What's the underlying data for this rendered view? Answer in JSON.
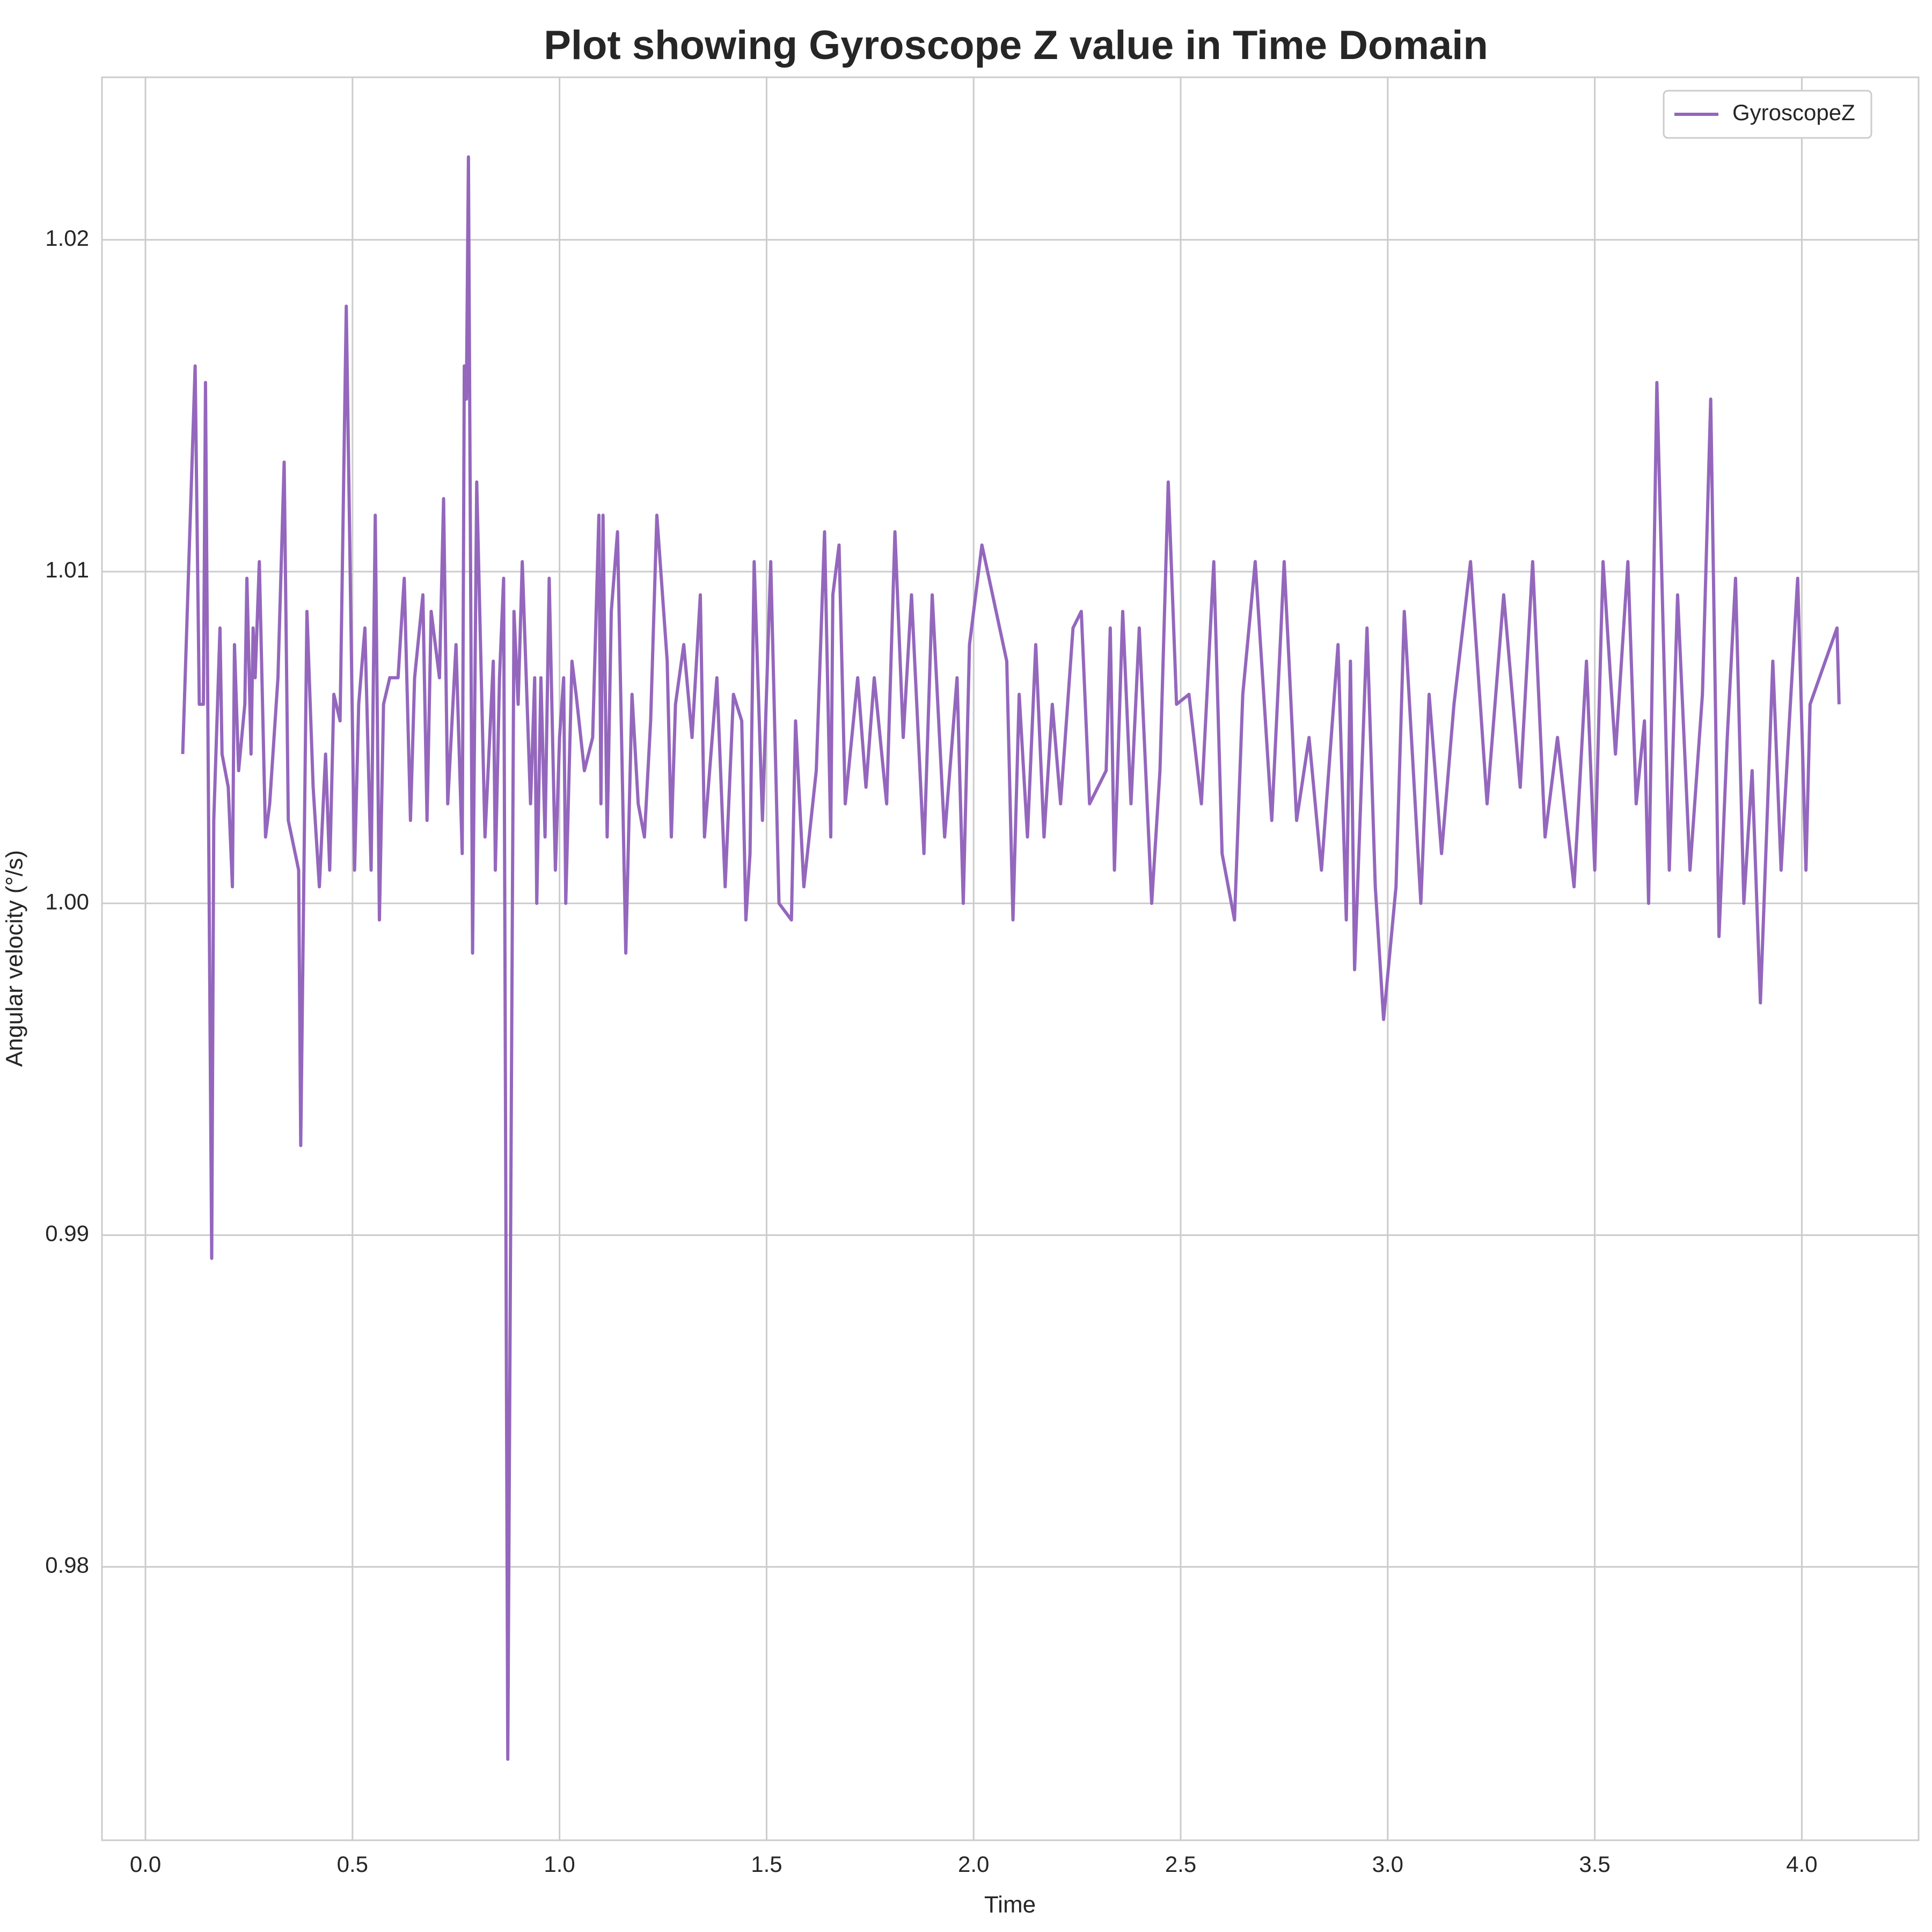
{
  "chart_data": {
    "type": "line",
    "title": "Plot showing Gyroscope Z value in Time Domain",
    "xlabel": "Time",
    "ylabel": "Angular velocity (°/s)",
    "xlim": [
      -0.105,
      4.282
    ],
    "ylim": [
      0.97176,
      1.0249
    ],
    "xticks": [
      {
        "value": 0,
        "label": "0.0"
      },
      0.5,
      {
        "value": 1,
        "label": "1.0"
      },
      1.5,
      {
        "value": 2,
        "label": "2.0"
      },
      2.5,
      {
        "value": 3,
        "label": "3.0"
      },
      3.5,
      {
        "value": 4,
        "label": "4.0"
      }
    ],
    "yticks": [
      0.98,
      0.99,
      {
        "value": 1,
        "label": "1.00"
      },
      1.01,
      1.02
    ],
    "grid": true,
    "legend": "upper right",
    "x": [
      0.09,
      0.12,
      0.13,
      0.14,
      0.145,
      0.16,
      0.165,
      0.18,
      0.185,
      0.2,
      0.21,
      0.215,
      0.225,
      0.24,
      0.245,
      0.255,
      0.26,
      0.265,
      0.275,
      0.29,
      0.3,
      0.32,
      0.335,
      0.345,
      0.37,
      0.375,
      0.39,
      0.405,
      0.42,
      0.435,
      0.445,
      0.455,
      0.47,
      0.485,
      0.505,
      0.515,
      0.53,
      0.545,
      0.555,
      0.565,
      0.575,
      0.59,
      0.61,
      0.625,
      0.64,
      0.65,
      0.67,
      0.68,
      0.69,
      0.71,
      0.72,
      0.73,
      0.75,
      0.765,
      0.77,
      0.775,
      0.78,
      0.79,
      0.8,
      0.82,
      0.84,
      0.845,
      0.855,
      0.865,
      0.875,
      0.89,
      0.9,
      0.91,
      0.93,
      0.94,
      0.945,
      0.955,
      0.965,
      0.975,
      0.99,
      1.0,
      1.01,
      1.015,
      1.03,
      1.04,
      1.06,
      1.08,
      1.095,
      1.1,
      1.105,
      1.115,
      1.125,
      1.14,
      1.16,
      1.175,
      1.19,
      1.205,
      1.22,
      1.235,
      1.26,
      1.27,
      1.28,
      1.3,
      1.32,
      1.34,
      1.35,
      1.38,
      1.4,
      1.42,
      1.44,
      1.45,
      1.46,
      1.47,
      1.49,
      1.51,
      1.53,
      1.56,
      1.57,
      1.59,
      1.62,
      1.64,
      1.655,
      1.66,
      1.675,
      1.69,
      1.72,
      1.74,
      1.76,
      1.79,
      1.81,
      1.83,
      1.85,
      1.88,
      1.9,
      1.93,
      1.96,
      1.975,
      1.99,
      2.02,
      2.08,
      2.095,
      2.11,
      2.13,
      2.15,
      2.17,
      2.19,
      2.21,
      2.24,
      2.26,
      2.28,
      2.32,
      2.33,
      2.34,
      2.36,
      2.38,
      2.4,
      2.43,
      2.45,
      2.47,
      2.49,
      2.52,
      2.55,
      2.58,
      2.6,
      2.63,
      2.65,
      2.68,
      2.72,
      2.75,
      2.78,
      2.81,
      2.84,
      2.88,
      2.9,
      2.91,
      2.92,
      2.95,
      2.97,
      2.99,
      3.02,
      3.04,
      3.08,
      3.1,
      3.13,
      3.16,
      3.2,
      3.24,
      3.28,
      3.32,
      3.35,
      3.38,
      3.41,
      3.45,
      3.48,
      3.5,
      3.52,
      3.55,
      3.58,
      3.6,
      3.62,
      3.63,
      3.65,
      3.68,
      3.7,
      3.73,
      3.76,
      3.78,
      3.8,
      3.82,
      3.84,
      3.86,
      3.88,
      3.9,
      3.93,
      3.95,
      3.97,
      3.99,
      4.01,
      4.02,
      4.085,
      4.09
    ],
    "series": [
      {
        "name": "GyroscopeZ",
        "color": "#9467bd",
        "values": [
          1.0045,
          1.0162,
          1.006,
          1.006,
          1.0157,
          0.9893,
          1.0025,
          1.0083,
          1.0045,
          1.0035,
          1.0005,
          1.0078,
          1.004,
          1.006,
          1.0098,
          1.0045,
          1.0083,
          1.0068,
          1.0103,
          1.002,
          1.003,
          1.0068,
          1.0133,
          1.0025,
          1.001,
          0.9927,
          1.0088,
          1.0035,
          1.0005,
          1.0045,
          1.001,
          1.0063,
          1.0055,
          1.018,
          1.001,
          1.006,
          1.0083,
          1.001,
          1.0117,
          0.9995,
          1.006,
          1.0068,
          1.0068,
          1.0098,
          1.0025,
          1.0068,
          1.0093,
          1.0025,
          1.0088,
          1.0068,
          1.0122,
          1.003,
          1.0078,
          1.0015,
          1.0162,
          1.0152,
          1.0225,
          0.9985,
          1.0127,
          1.002,
          1.0073,
          1.001,
          1.0068,
          1.0098,
          0.9742,
          1.0088,
          1.006,
          1.0103,
          1.003,
          1.0068,
          1.0,
          1.0068,
          1.002,
          1.0098,
          1.001,
          1.005,
          1.0068,
          1.0,
          1.0073,
          1.0063,
          1.004,
          1.005,
          1.0117,
          1.003,
          1.0117,
          1.002,
          1.0088,
          1.0112,
          0.9985,
          1.0063,
          1.003,
          1.002,
          1.0055,
          1.0117,
          1.0073,
          1.002,
          1.006,
          1.0078,
          1.005,
          1.0093,
          1.002,
          1.0068,
          1.0005,
          1.0063,
          1.0055,
          0.9995,
          1.0015,
          1.0103,
          1.0025,
          1.0103,
          1.0,
          0.9995,
          1.0055,
          1.0005,
          1.004,
          1.0112,
          1.002,
          1.0093,
          1.0108,
          1.003,
          1.0068,
          1.0035,
          1.0068,
          1.003,
          1.0112,
          1.005,
          1.0093,
          1.0015,
          1.0093,
          1.002,
          1.0068,
          1.0,
          1.0078,
          1.0108,
          1.0073,
          0.9995,
          1.0063,
          1.002,
          1.0078,
          1.002,
          1.006,
          1.003,
          1.0083,
          1.0088,
          1.003,
          1.004,
          1.0083,
          1.001,
          1.0088,
          1.003,
          1.0083,
          1.0,
          1.004,
          1.0127,
          1.006,
          1.0063,
          1.003,
          1.0103,
          1.0015,
          0.9995,
          1.0063,
          1.0103,
          1.0025,
          1.0103,
          1.0025,
          1.005,
          1.001,
          1.0078,
          0.9995,
          1.0073,
          0.998,
          1.0083,
          1.0005,
          0.9965,
          1.0005,
          1.0088,
          1.0,
          1.0063,
          1.0015,
          1.006,
          1.0103,
          1.003,
          1.0093,
          1.0035,
          1.0103,
          1.002,
          1.005,
          1.0005,
          1.0073,
          1.001,
          1.0103,
          1.0045,
          1.0103,
          1.003,
          1.0055,
          1.0,
          1.0157,
          1.001,
          1.0093,
          1.001,
          1.0063,
          1.0152,
          0.999,
          1.005,
          1.0098,
          1.0,
          1.004,
          0.997,
          1.0073,
          1.001,
          1.0055,
          1.0098,
          1.001,
          1.006,
          1.0083,
          1.006
        ]
      }
    ]
  }
}
